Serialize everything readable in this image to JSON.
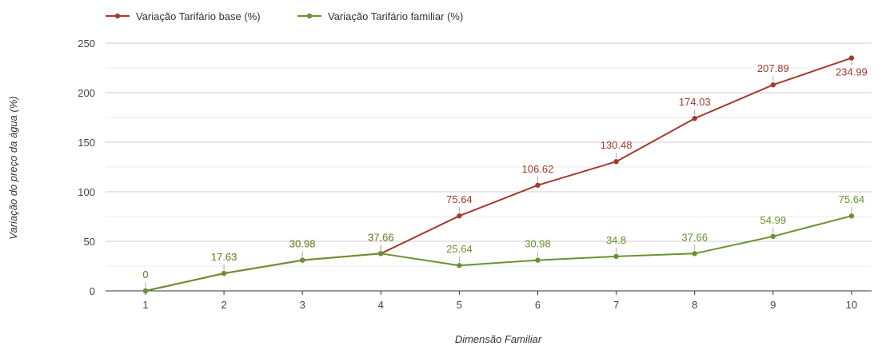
{
  "chart_data": {
    "type": "line",
    "title": "",
    "xlabel": "Dimensão Familiar",
    "ylabel": "Variação do preço da água (%)",
    "categories": [
      "1",
      "2",
      "3",
      "4",
      "5",
      "6",
      "7",
      "8",
      "9",
      "10"
    ],
    "ylim": [
      0,
      250
    ],
    "yticks": [
      "0",
      "50",
      "100",
      "150",
      "200",
      "250"
    ],
    "grid": true,
    "legend_position": "top-left",
    "series": [
      {
        "name": "Variação Tarifário base (%)",
        "color": "#a33a2e",
        "values": [
          0,
          17.63,
          30.98,
          37.66,
          75.64,
          106.62,
          130.48,
          174.03,
          207.89,
          234.99
        ],
        "labels": [
          "0",
          "17.63",
          "30.98",
          "37.66",
          "75.64",
          "106.62",
          "130.48",
          "174.03",
          "207.89",
          "234.99"
        ]
      },
      {
        "name": "Variação Tarifário familiar (%)",
        "color": "#6b9231",
        "values": [
          0,
          17.63,
          30.98,
          37.66,
          25.64,
          30.98,
          34.8,
          37.66,
          54.99,
          75.64
        ],
        "labels": [
          "0",
          "17.63",
          "30.98",
          "37.66",
          "25.64",
          "30.98",
          "34.8",
          "37.66",
          "54.99",
          "75.64"
        ]
      }
    ]
  }
}
